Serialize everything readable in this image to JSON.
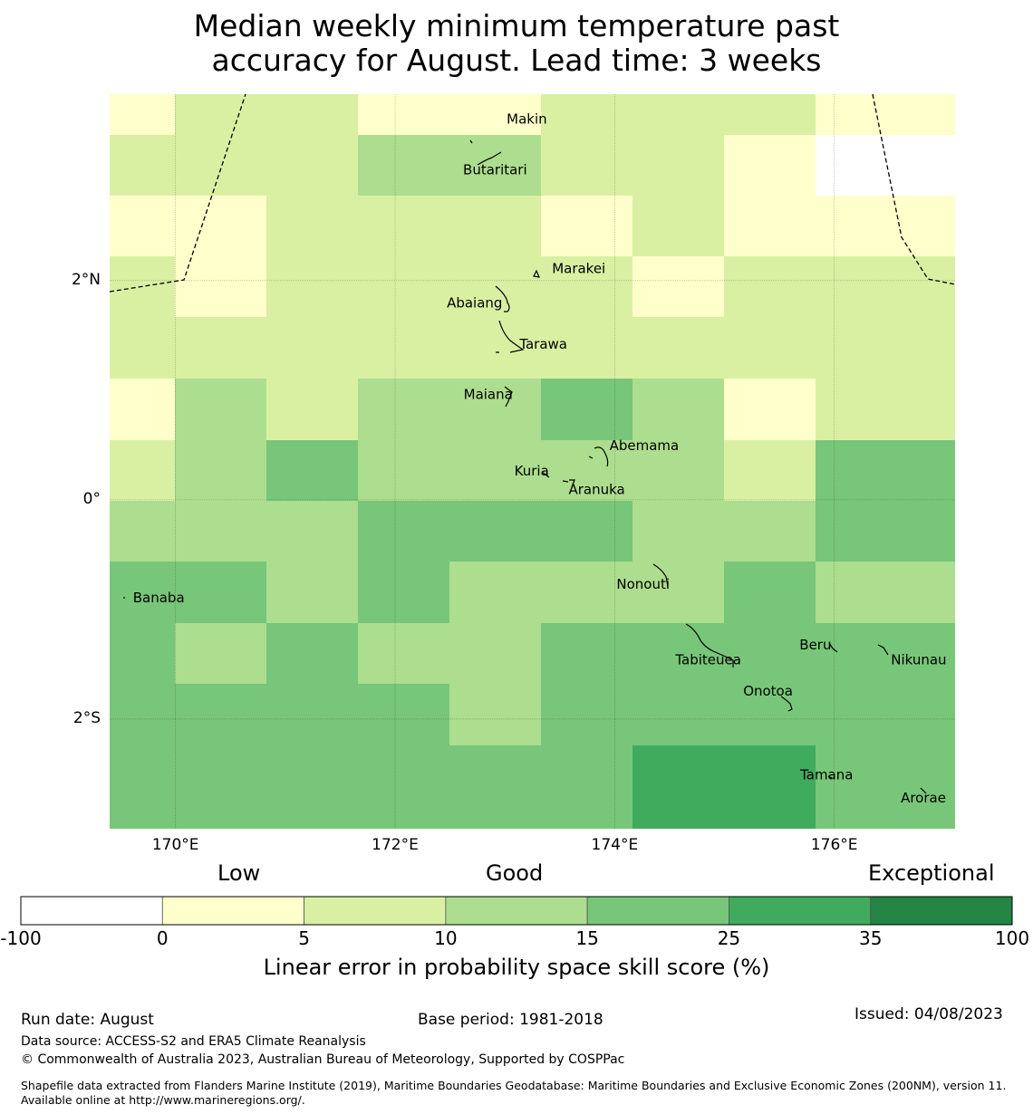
{
  "title_line1": "Median weekly minimum temperature past",
  "title_line2": "accuracy for August. Lead time: 3 weeks",
  "map": {
    "lon_range": [
      169.4,
      177.1
    ],
    "lat_range": [
      -3.0,
      3.7
    ],
    "lon_ticks": [
      {
        "value": 170,
        "label": "170°E"
      },
      {
        "value": 172,
        "label": "172°E"
      },
      {
        "value": 174,
        "label": "174°E"
      },
      {
        "value": 176,
        "label": "176°E"
      }
    ],
    "lat_ticks": [
      {
        "value": 2,
        "label": "2°N"
      },
      {
        "value": 0,
        "label": "0°"
      },
      {
        "value": -2,
        "label": "2°S"
      }
    ],
    "grid_cols": 9,
    "grid_rows": 12,
    "cell_categories": [
      [
        1,
        2,
        2,
        1,
        1,
        2,
        2,
        2,
        1
      ],
      [
        2,
        2,
        2,
        3,
        3,
        2,
        2,
        1,
        0
      ],
      [
        1,
        1,
        2,
        2,
        2,
        1,
        2,
        1,
        1
      ],
      [
        2,
        1,
        2,
        2,
        2,
        2,
        1,
        2,
        2
      ],
      [
        2,
        2,
        2,
        2,
        2,
        2,
        2,
        2,
        2
      ],
      [
        1,
        3,
        2,
        3,
        3,
        4,
        3,
        1,
        2
      ],
      [
        2,
        3,
        4,
        3,
        3,
        3,
        3,
        2,
        4
      ],
      [
        3,
        3,
        3,
        4,
        4,
        4,
        3,
        3,
        4
      ],
      [
        4,
        4,
        3,
        4,
        3,
        3,
        3,
        4,
        3
      ],
      [
        4,
        3,
        4,
        3,
        3,
        4,
        4,
        4,
        4
      ],
      [
        4,
        4,
        4,
        4,
        3,
        4,
        4,
        4,
        4
      ],
      [
        4,
        4,
        4,
        4,
        4,
        4,
        5,
        5,
        4
      ]
    ],
    "places": [
      {
        "name": "Makin",
        "lon": 172.95,
        "lat": 3.38
      },
      {
        "name": "Butaritari",
        "lon": 172.85,
        "lat": 3.05
      },
      {
        "name": "Marakei",
        "lon": 173.33,
        "lat": 2.02
      },
      {
        "name": "Abaiang",
        "lon": 172.9,
        "lat": 1.82
      },
      {
        "name": "Tarawa",
        "lon": 173.1,
        "lat": 1.38
      },
      {
        "name": "Maiana",
        "lon": 173.02,
        "lat": 0.92
      },
      {
        "name": "Abemama",
        "lon": 173.87,
        "lat": 0.42
      },
      {
        "name": "Kuria",
        "lon": 173.4,
        "lat": 0.22
      },
      {
        "name": "Aranuka",
        "lon": 173.58,
        "lat": 0.17
      },
      {
        "name": "Banaba",
        "lon": 169.53,
        "lat": -0.87
      },
      {
        "name": "Nonouti",
        "lon": 174.38,
        "lat": -0.68
      },
      {
        "name": "Tabiteuea",
        "lon": 174.85,
        "lat": -1.4
      },
      {
        "name": "Beru",
        "lon": 175.98,
        "lat": -1.33
      },
      {
        "name": "Nikunau",
        "lon": 176.45,
        "lat": -1.35
      },
      {
        "name": "Onotoa",
        "lon": 175.55,
        "lat": -1.82
      },
      {
        "name": "Tamana",
        "lon": 175.97,
        "lat": -2.5
      },
      {
        "name": "Arorae",
        "lon": 176.82,
        "lat": -2.63
      }
    ]
  },
  "colorbar": {
    "colors": [
      "#ffffff",
      "#ffffcc",
      "#d9f0a3",
      "#addd8e",
      "#78c679",
      "#41ab5d",
      "#238443"
    ],
    "bounds": [
      "-100",
      "0",
      "5",
      "10",
      "15",
      "25",
      "35",
      "100"
    ],
    "category_labels": {
      "low": "Low",
      "good": "Good",
      "exceptional": "Exceptional"
    },
    "label": "Linear error in probability space skill score (%)"
  },
  "footer": {
    "run_date": "Run date: August",
    "base_period": "Base period: 1981-2018",
    "issued": "Issued: 04/08/2023",
    "data_source": "Data source: ACCESS-S2 and ERA5 Climate Reanalysis",
    "copyright": "© Commonwealth of Australia 2023, Australian Bureau of Meteorology, Supported by COSPPac",
    "shapefile": "Shapefile data extracted from Flanders Marine Institute (2019), Maritime Boundaries Geodatabase: Maritime Boundaries and Exclusive Economic Zones (200NM), version 11. Available online at http://www.marineregions.org/."
  }
}
